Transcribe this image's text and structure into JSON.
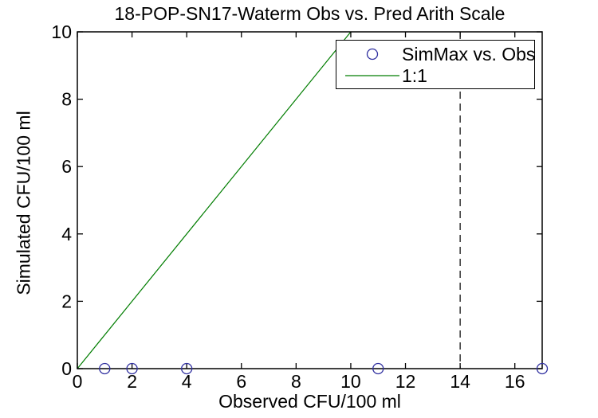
{
  "chart_data": {
    "type": "scatter",
    "title": "18-POP-SN17-Waterm Obs vs. Pred Arith Scale",
    "xlabel": "Observed CFU/100 ml",
    "ylabel": "Simulated CFU/100 ml",
    "xlim": [
      0,
      17
    ],
    "ylim": [
      0,
      10
    ],
    "x_ticks": [
      0,
      2,
      4,
      6,
      8,
      10,
      12,
      14,
      16
    ],
    "y_ticks": [
      0,
      2,
      4,
      6,
      8,
      10
    ],
    "grid": false,
    "legend_position": "upper right",
    "series": [
      {
        "name": "SimMax vs. Obs",
        "type": "scatter",
        "marker": "circle",
        "color": "#3030A0",
        "x": [
          1,
          2,
          4,
          11,
          17
        ],
        "y": [
          0,
          0,
          0,
          0,
          0
        ]
      },
      {
        "name": "1:1",
        "type": "line",
        "color": "#007D00",
        "x": [
          0,
          10
        ],
        "y": [
          0,
          10
        ]
      }
    ],
    "annotations": [
      {
        "type": "vline",
        "x": 14,
        "style": "dashed",
        "color": "#000000"
      }
    ],
    "colors": {
      "axis": "#000000",
      "background": "#FFFFFF"
    }
  }
}
